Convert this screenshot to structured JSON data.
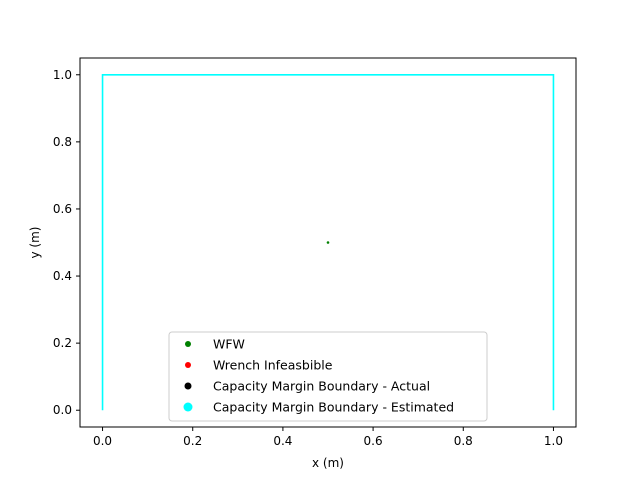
{
  "chart_data": {
    "type": "scatter",
    "xlabel": "x (m)",
    "ylabel": "y (m)",
    "xlim": [
      -0.05,
      1.05
    ],
    "ylim": [
      -0.05,
      1.05
    ],
    "x_ticks": [
      "0.0",
      "0.2",
      "0.4",
      "0.6",
      "0.8",
      "1.0"
    ],
    "y_ticks": [
      "0.0",
      "0.2",
      "0.4",
      "0.6",
      "0.8",
      "1.0"
    ],
    "grid": false,
    "legend_position": "lower center",
    "series": [
      {
        "name": "WFW",
        "color": "#008000",
        "marker": "point",
        "points": [
          [
            0.5,
            0.5
          ]
        ]
      },
      {
        "name": "Wrench Infeasbible",
        "color": "#ff0000",
        "marker": "point",
        "points": []
      },
      {
        "name": "Capacity Margin Boundary - Actual",
        "color": "#000000",
        "marker": "point",
        "points": []
      },
      {
        "name": "Capacity Margin Boundary - Estimated",
        "color": "#00ffff",
        "marker": "line",
        "points": [
          [
            0.0,
            0.0
          ],
          [
            0.0,
            1.0
          ],
          [
            1.0,
            1.0
          ],
          [
            1.0,
            0.0
          ]
        ]
      }
    ]
  }
}
